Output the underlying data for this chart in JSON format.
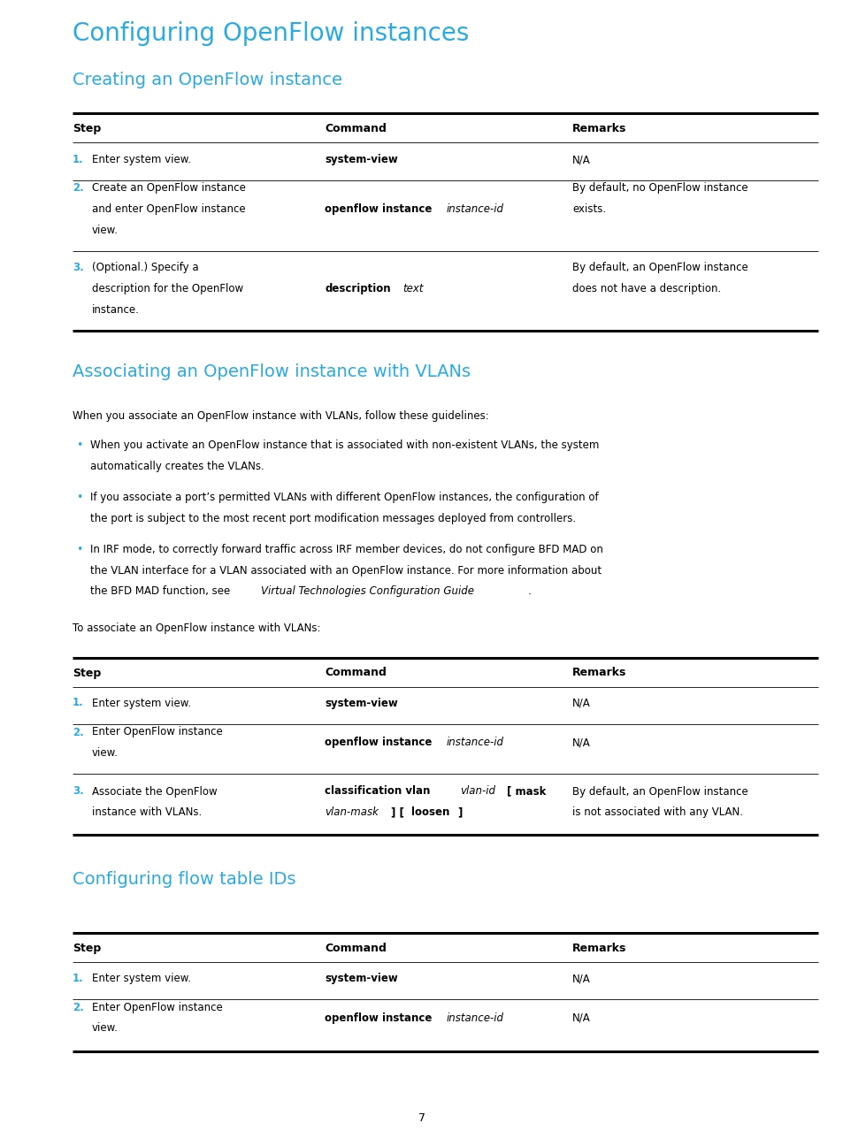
{
  "bg_color": "#ffffff",
  "cyan_color": "#29abe2",
  "black_color": "#000000",
  "title1": "Configuring OpenFlow instances",
  "title2": "Creating an OpenFlow instance",
  "title3": "Associating an OpenFlow instance with VLANs",
  "title4": "Configuring flow table IDs",
  "intro_text": "When you associate an OpenFlow instance with VLANs, follow these guidelines:",
  "to_associate_text": "To associate an OpenFlow instance with VLANs:",
  "page_number": "7",
  "fig_w": 9.54,
  "fig_h": 12.96,
  "dpi": 100
}
